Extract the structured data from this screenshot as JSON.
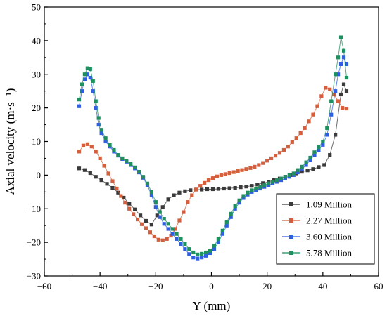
{
  "chart_data": {
    "type": "line",
    "xlabel": "Y (mm)",
    "ylabel": "Axial velocity (m·s⁻¹)",
    "xlim": [
      -60,
      60
    ],
    "ylim": [
      -30,
      50
    ],
    "xticks": [
      -60,
      -40,
      -20,
      0,
      20,
      40,
      60
    ],
    "yticks": [
      -30,
      -20,
      -10,
      0,
      10,
      20,
      30,
      40,
      50
    ],
    "grid": false,
    "legend_position": "bottom-right",
    "series": [
      {
        "name": "1.09 Million",
        "color": "#3a3a3a",
        "x": [
          -47.5,
          -45.5,
          -43.5,
          -41.5,
          -39.5,
          -37.5,
          -35.5,
          -33.5,
          -31.5,
          -29.5,
          -27.5,
          -25.5,
          -23.5,
          -21.5,
          -19.5,
          -17.5,
          -15.5,
          -13.5,
          -11.5,
          -9.5,
          -7.5,
          -5.5,
          -3.5,
          -1.5,
          0.5,
          2.5,
          4.5,
          6.5,
          8.5,
          10.5,
          12.5,
          14.5,
          16.5,
          18.5,
          20.5,
          22.5,
          24.5,
          26.5,
          28.5,
          30.5,
          32.5,
          34.5,
          36.5,
          38.5,
          40.5,
          42.5,
          44.5,
          46.5,
          47.5,
          48.5
        ],
        "y": [
          2.0,
          1.5,
          0.6,
          -0.5,
          -1.5,
          -2.6,
          -3.8,
          -5.2,
          -6.7,
          -8.5,
          -10.2,
          -12.0,
          -13.6,
          -14.7,
          -12.0,
          -9.5,
          -7.2,
          -6.0,
          -5.2,
          -4.8,
          -4.5,
          -4.3,
          -4.3,
          -4.2,
          -4.2,
          -4.1,
          -4.0,
          -3.9,
          -3.8,
          -3.6,
          -3.4,
          -3.2,
          -2.8,
          -2.4,
          -2.0,
          -1.5,
          -1.0,
          -0.5,
          0.0,
          0.5,
          1.0,
          1.4,
          1.8,
          2.4,
          3.0,
          6.0,
          12.0,
          24.0,
          27.0,
          25.0
        ]
      },
      {
        "name": "2.27 Million",
        "color": "#d35f3c",
        "x": [
          -47.5,
          -46,
          -44.5,
          -43,
          -41.5,
          -40,
          -38.5,
          -37,
          -35.5,
          -34,
          -32.5,
          -31,
          -29.5,
          -28,
          -26.5,
          -25,
          -23.5,
          -22,
          -20.5,
          -19,
          -17.5,
          -16,
          -14.5,
          -13,
          -11.5,
          -10,
          -8.5,
          -7,
          -5.5,
          -4,
          -2.5,
          -1,
          0.5,
          2,
          3.5,
          5,
          6.5,
          8,
          9.5,
          11,
          12.5,
          14,
          15.5,
          17,
          18.5,
          20,
          21.5,
          23,
          24.5,
          26,
          27.5,
          29,
          30.5,
          32,
          33.5,
          35,
          36.5,
          38,
          39.5,
          41,
          42.5,
          44,
          45.5,
          47,
          48.5
        ],
        "y": [
          7.0,
          8.8,
          9.2,
          8.5,
          7.0,
          5.0,
          2.8,
          0.5,
          -1.8,
          -4.0,
          -6.2,
          -8.2,
          -10.0,
          -11.6,
          -13.2,
          -14.6,
          -15.8,
          -17.0,
          -18.2,
          -19.2,
          -19.4,
          -19.0,
          -18.0,
          -16.0,
          -13.5,
          -11.0,
          -8.0,
          -6.0,
          -4.3,
          -3.2,
          -2.3,
          -1.5,
          -0.9,
          -0.4,
          0.0,
          0.3,
          0.6,
          0.9,
          1.2,
          1.5,
          1.8,
          2.1,
          2.5,
          3.0,
          3.6,
          4.3,
          5.0,
          5.8,
          6.6,
          7.5,
          8.5,
          9.8,
          11.0,
          12.5,
          14.0,
          16.0,
          18.0,
          20.5,
          23.5,
          26.0,
          25.5,
          24.0,
          22.0,
          20.0,
          19.8
        ]
      },
      {
        "name": "3.60 Million",
        "color": "#2f5fe0",
        "x": [
          -47.5,
          -46.5,
          -45.5,
          -44.5,
          -43.5,
          -42.5,
          -41.5,
          -40.5,
          -39.5,
          -38,
          -36.5,
          -35,
          -33.5,
          -32,
          -30.5,
          -29,
          -27.5,
          -26,
          -24.5,
          -23,
          -21.5,
          -20,
          -18.5,
          -17,
          -15.5,
          -14,
          -12.5,
          -11,
          -9.5,
          -8,
          -6.5,
          -5,
          -3.5,
          -2,
          -0.5,
          1,
          2.5,
          4,
          5.5,
          7,
          8.5,
          10,
          11.5,
          13,
          14.5,
          16,
          17.5,
          19,
          20.5,
          22,
          23.5,
          25,
          26.5,
          28,
          29.5,
          31,
          32.5,
          34,
          35.5,
          37,
          38.5,
          40,
          41.5,
          43,
          44.5,
          45.5,
          46.5,
          47.5,
          48.5
        ],
        "y": [
          20.5,
          25.0,
          28.5,
          30.0,
          29.0,
          25.0,
          20.0,
          15.0,
          12.5,
          10.0,
          8.5,
          7.0,
          5.8,
          4.8,
          4.0,
          3.0,
          2.0,
          0.8,
          -0.8,
          -3.0,
          -6.0,
          -9.5,
          -12.5,
          -14.5,
          -16.0,
          -17.5,
          -19.0,
          -20.5,
          -22.0,
          -23.5,
          -24.5,
          -24.8,
          -24.5,
          -24.0,
          -23.2,
          -22.0,
          -20.0,
          -17.5,
          -15.0,
          -12.5,
          -10.0,
          -8.2,
          -6.8,
          -5.8,
          -5.0,
          -4.5,
          -4.0,
          -3.5,
          -3.0,
          -2.5,
          -2.0,
          -1.5,
          -1.0,
          -0.5,
          0.0,
          0.8,
          1.8,
          3.0,
          4.5,
          6.0,
          7.5,
          9.0,
          12.0,
          18.0,
          25.0,
          30.0,
          33.0,
          35.0,
          33.0
        ]
      },
      {
        "name": "5.78 Million",
        "color": "#1f8f5f",
        "x": [
          -47.5,
          -46.5,
          -45.5,
          -44.5,
          -43.5,
          -42.5,
          -41.5,
          -40.5,
          -39.5,
          -38,
          -36.5,
          -35,
          -33.5,
          -32,
          -30.5,
          -29,
          -27.5,
          -26,
          -24.5,
          -23,
          -21.5,
          -20,
          -18.5,
          -17,
          -15.5,
          -14,
          -12.5,
          -11,
          -9.5,
          -8,
          -6.5,
          -5,
          -3.5,
          -2,
          -0.5,
          1,
          2.5,
          4,
          5.5,
          7,
          8.5,
          10,
          11.5,
          13,
          14.5,
          16,
          17.5,
          19,
          20.5,
          22,
          23.5,
          25,
          26.5,
          28,
          29.5,
          31,
          32.5,
          34,
          35.5,
          37,
          38.5,
          40,
          41.5,
          43,
          44.5,
          45.5,
          46.5,
          47.5,
          48.5
        ],
        "y": [
          22.5,
          27.0,
          30.0,
          31.8,
          31.5,
          28.0,
          22.0,
          17.0,
          13.5,
          11.0,
          9.0,
          7.5,
          6.0,
          5.0,
          4.2,
          3.3,
          2.3,
          1.0,
          -0.5,
          -2.5,
          -5.0,
          -8.0,
          -11.0,
          -13.0,
          -14.5,
          -16.0,
          -17.5,
          -19.0,
          -20.5,
          -22.0,
          -23.0,
          -23.6,
          -23.4,
          -23.0,
          -22.5,
          -21.0,
          -19.0,
          -16.5,
          -14.0,
          -11.5,
          -9.2,
          -7.5,
          -6.2,
          -5.2,
          -4.5,
          -4.0,
          -3.5,
          -3.0,
          -2.5,
          -2.0,
          -1.5,
          -1.0,
          -0.5,
          0.0,
          0.5,
          1.5,
          2.5,
          3.8,
          5.2,
          6.8,
          8.3,
          10.0,
          14.0,
          22.0,
          30.0,
          35.0,
          41.0,
          37.0,
          29.0
        ]
      }
    ]
  }
}
